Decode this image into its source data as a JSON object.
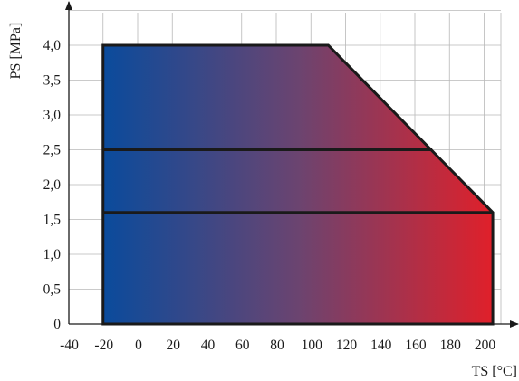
{
  "chart_data": {
    "type": "area",
    "x_axis": {
      "label": "TS [°C]",
      "range": [
        -40,
        210
      ],
      "ticks": [
        -40,
        -20,
        0,
        20,
        40,
        60,
        80,
        100,
        120,
        140,
        160,
        180,
        200
      ],
      "tick_labels": [
        "-40",
        "-20",
        "0",
        "20",
        "40",
        "60",
        "80",
        "100",
        "120",
        "140",
        "160",
        "180",
        "200"
      ]
    },
    "y_axis": {
      "label": "PS [MPa]",
      "range": [
        0,
        4.5
      ],
      "ticks": [
        0,
        0.5,
        1.0,
        1.5,
        2.0,
        2.5,
        3.0,
        3.5,
        4.0
      ],
      "tick_labels": [
        "0",
        "0,5",
        "1,0",
        "1,5",
        "2,0",
        "2,5",
        "3,0",
        "3,5",
        "4,0"
      ]
    },
    "grid": true,
    "gradient_colors": {
      "cold": "#0a4b9c",
      "mid": "#6b4470",
      "hot": "#e0202a"
    },
    "region": {
      "outline": [
        [
          -20,
          0
        ],
        [
          -20,
          4.0
        ],
        [
          110,
          4.0
        ],
        [
          205,
          1.6
        ],
        [
          205,
          0
        ]
      ]
    },
    "limit_lines": [
      {
        "y": 2.5,
        "x_start": -20,
        "x_end": 170
      },
      {
        "y": 1.6,
        "x_start": -20,
        "x_end": 205
      }
    ]
  }
}
